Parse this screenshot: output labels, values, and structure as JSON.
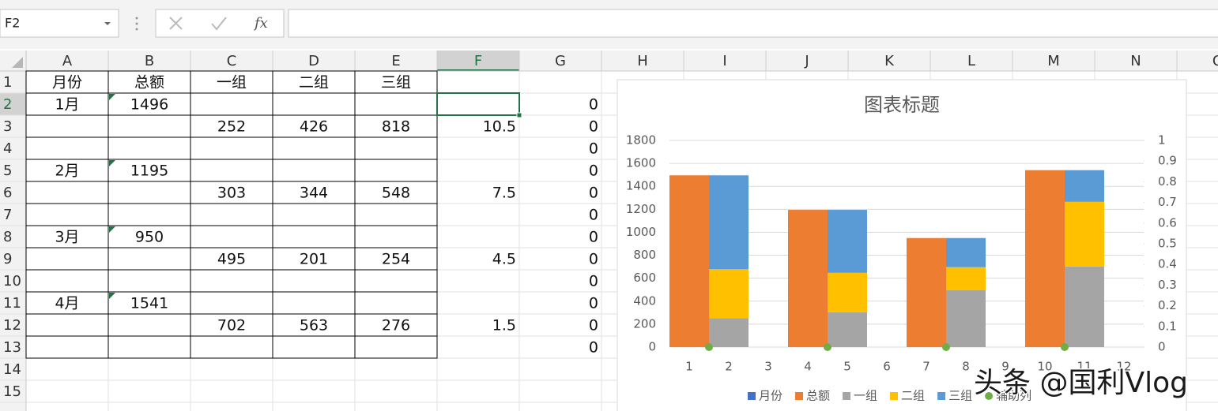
{
  "name_box": "F2",
  "fx_label": "fx",
  "columns": [
    "A",
    "B",
    "C",
    "D",
    "E",
    "F",
    "G",
    "H",
    "I",
    "J",
    "K",
    "L",
    "M",
    "N",
    "O"
  ],
  "rows": [
    1,
    2,
    3,
    4,
    5,
    6,
    7,
    8,
    9,
    10,
    11,
    12,
    13,
    14,
    15
  ],
  "cells": [
    [
      "月份",
      "总额",
      "一组",
      "二组",
      "三组",
      null,
      null
    ],
    [
      "1月",
      1496,
      null,
      null,
      null,
      null,
      0
    ],
    [
      null,
      null,
      252,
      426,
      818,
      10.5,
      0
    ],
    [
      null,
      null,
      null,
      null,
      null,
      null,
      0
    ],
    [
      "2月",
      1195,
      null,
      null,
      null,
      null,
      0
    ],
    [
      null,
      null,
      303,
      344,
      548,
      7.5,
      0
    ],
    [
      null,
      null,
      null,
      null,
      null,
      null,
      0
    ],
    [
      "3月",
      950,
      null,
      null,
      null,
      null,
      0
    ],
    [
      null,
      null,
      495,
      201,
      254,
      4.5,
      0
    ],
    [
      null,
      null,
      null,
      null,
      null,
      null,
      0
    ],
    [
      "4月",
      1541,
      null,
      null,
      null,
      null,
      0
    ],
    [
      null,
      null,
      702,
      563,
      276,
      1.5,
      0
    ],
    [
      null,
      null,
      null,
      null,
      null,
      null,
      0
    ]
  ],
  "chart_data": {
    "type": "bar",
    "stacked": true,
    "title": "图表标题",
    "categories": [
      1,
      2,
      3,
      4,
      5,
      6,
      7,
      8,
      9,
      10,
      11,
      12
    ],
    "series": [
      {
        "name": "月份",
        "color": "#4472c4",
        "values": [
          null,
          null,
          null,
          null,
          null,
          null,
          null,
          null,
          null,
          null,
          null,
          null
        ]
      },
      {
        "name": "总额",
        "color": "#ed7d31",
        "values": [
          1496,
          null,
          null,
          1195,
          null,
          null,
          950,
          null,
          null,
          1541,
          null,
          null
        ]
      },
      {
        "name": "一组",
        "color": "#a5a5a5",
        "values": [
          null,
          252,
          null,
          null,
          303,
          null,
          null,
          495,
          null,
          null,
          702,
          null
        ]
      },
      {
        "name": "二组",
        "color": "#ffc000",
        "values": [
          null,
          426,
          null,
          null,
          344,
          null,
          null,
          201,
          null,
          null,
          563,
          null
        ]
      },
      {
        "name": "三组",
        "color": "#5b9bd5",
        "values": [
          null,
          818,
          null,
          null,
          548,
          null,
          null,
          254,
          null,
          null,
          276,
          null
        ]
      },
      {
        "name": "辅助列",
        "color": "#70ad47",
        "type": "scatter",
        "axis": "y2",
        "x": [
          10.5,
          7.5,
          4.5,
          1.5
        ],
        "values": [
          0,
          0,
          0,
          0
        ]
      }
    ],
    "ylim": [
      0,
      1800
    ],
    "yticks": [
      0,
      200,
      400,
      600,
      800,
      1000,
      1200,
      1400,
      1600,
      1800
    ],
    "y2lim": [
      0,
      1
    ],
    "y2ticks": [
      0,
      0.1,
      0.2,
      0.3,
      0.4,
      0.5,
      0.6,
      0.7,
      0.8,
      0.9,
      1
    ],
    "grid": true,
    "legend": "bottom"
  },
  "watermark": "头条 @国利Vlog"
}
